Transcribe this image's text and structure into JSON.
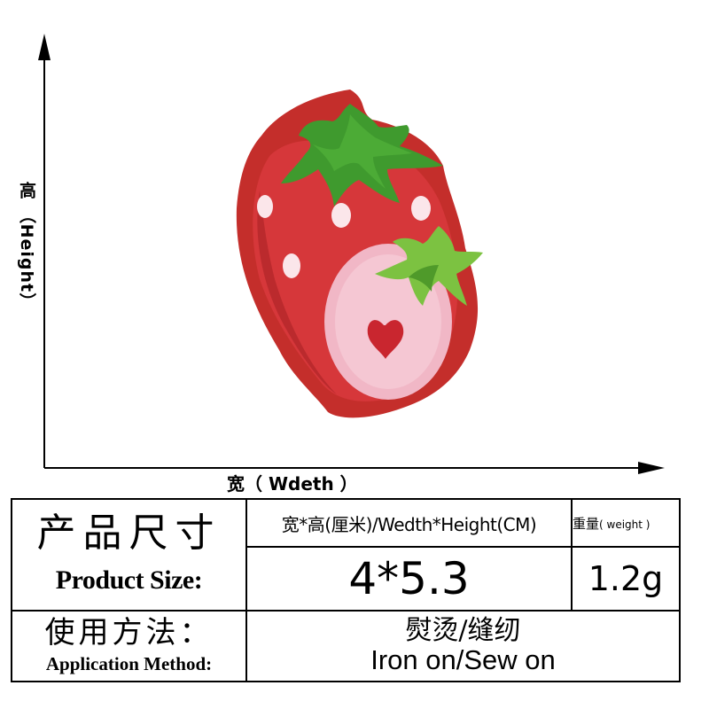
{
  "axes": {
    "height_label": "高 （Height）",
    "width_label": "宽（ Wdeth ）"
  },
  "table": {
    "title_cn": "产品尺寸",
    "title_en": "Product Size:",
    "size_header": "宽*高(厘米)/Wedth*Height(CM)",
    "weight_header_cn": "重量",
    "weight_header_en": "( weight )",
    "size_value": "4*5.3",
    "weight_value": "1.2g",
    "method_cn": "使用方法：",
    "method_en": "Application Method:",
    "method_value_cn": "熨烫/缝纫",
    "method_value_en": "Iron on/Sew on"
  },
  "colors": {
    "felt": "#c42e2b",
    "strawberry": "#d6373a",
    "leaf": "#3f9a2e",
    "light_leaf": "#7cc241",
    "slice": "#f1b7c6",
    "heart": "#c9262f"
  }
}
